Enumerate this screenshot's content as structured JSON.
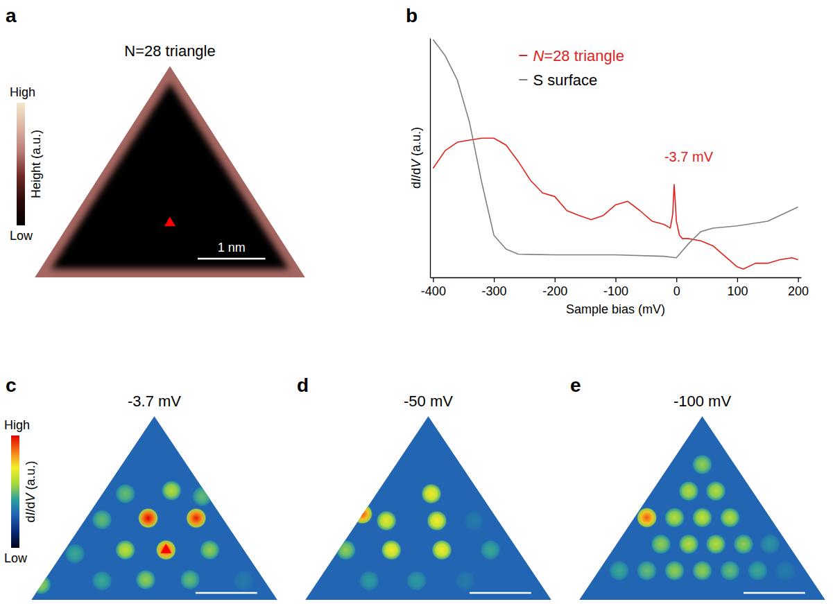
{
  "chart_data": [
    {
      "type": "image",
      "panel": "a",
      "title": "N=28 triangle",
      "width_nm": 4,
      "colorbar": {
        "label": "Height (a.u.)",
        "range": [
          0,
          1
        ],
        "ticks": [
          {
            "value": 1,
            "label": "High"
          },
          {
            "value": 0,
            "label": "Low"
          }
        ]
      },
      "rim_height": 0.55,
      "interior_height": 0.02,
      "tip": {
        "x": 2.0,
        "y": 0.89,
        "color": "#ff0000"
      },
      "scale_bar": {
        "length": 1,
        "label": "1 nm"
      }
    },
    {
      "type": "line",
      "panel": "b",
      "xlabel": "Sample bias (mV)",
      "ylabel": "dI/dV (a.u.)",
      "xlim": [
        -405,
        205
      ],
      "ylim": [
        0,
        100
      ],
      "xticks": [
        -400,
        -300,
        -200,
        -100,
        0,
        100,
        200
      ],
      "tick_labels": "x",
      "legend": "top-right",
      "series": [
        {
          "name": "N=28 triangle",
          "color": "#e3211c",
          "x": [
            -400,
            -380,
            -360,
            -340,
            -320,
            -300,
            -280,
            -260,
            -240,
            -220,
            -200,
            -180,
            -160,
            -140,
            -120,
            -100,
            -80,
            -60,
            -40,
            -20,
            -10,
            -6,
            -3.7,
            -2,
            0,
            5,
            10,
            20,
            40,
            60,
            80,
            100,
            110,
            130,
            150,
            170,
            190,
            200
          ],
          "values": [
            45.6,
            53.0,
            56.5,
            57.4,
            58.2,
            58.2,
            55.3,
            48.5,
            40.6,
            35.3,
            33.8,
            27.9,
            25.9,
            24.1,
            25.9,
            30.3,
            31.8,
            27.9,
            23.5,
            22.1,
            20.6,
            26.5,
            38.8,
            32.4,
            23.5,
            17.6,
            16.2,
            16.2,
            15.3,
            13.2,
            8.8,
            4.4,
            3.5,
            5.9,
            5.9,
            7.4,
            8.2,
            7.4
          ]
        },
        {
          "name": "S surface",
          "color": "#808080",
          "x": [
            -400,
            -380,
            -360,
            -340,
            -320,
            -300,
            -280,
            -260,
            -200,
            -100,
            -20,
            0,
            20,
            40,
            60,
            100,
            150,
            200
          ],
          "values": [
            99.4,
            92.6,
            82.4,
            64.7,
            39.7,
            17.6,
            11.8,
            9.7,
            9.4,
            9.4,
            8.8,
            8.2,
            14.1,
            19.1,
            20.6,
            21.5,
            23.5,
            29.4
          ]
        }
      ],
      "annotations": [
        {
          "text": "-3.7 mV",
          "x": -3.7,
          "y": 38.8,
          "color": "#e3211c"
        }
      ]
    },
    {
      "type": "image",
      "panel": "c",
      "title": "-3.7 mV",
      "width_nm": 4,
      "colorbar": {
        "label": "dI/dV (a.u.)",
        "range": [
          0,
          1
        ],
        "ticks": [
          {
            "value": 1,
            "label": "High"
          },
          {
            "value": 0,
            "label": "Low"
          }
        ]
      },
      "background": 0.3,
      "spots": [
        {
          "x": 1.9,
          "y": 1.54,
          "intensity": 1.0
        },
        {
          "x": 2.68,
          "y": 1.54,
          "intensity": 0.97
        },
        {
          "x": 2.19,
          "y": 0.94,
          "intensity": 0.93
        },
        {
          "x": 2.28,
          "y": 2.06,
          "intensity": 0.6
        },
        {
          "x": 1.53,
          "y": 2.0,
          "intensity": 0.5
        },
        {
          "x": 2.78,
          "y": 1.95,
          "intensity": 0.5
        },
        {
          "x": 1.15,
          "y": 1.51,
          "intensity": 0.5
        },
        {
          "x": 1.53,
          "y": 0.94,
          "intensity": 0.62
        },
        {
          "x": 2.9,
          "y": 0.94,
          "intensity": 0.55
        },
        {
          "x": 1.86,
          "y": 0.38,
          "intensity": 0.55
        },
        {
          "x": 2.58,
          "y": 0.38,
          "intensity": 0.5
        },
        {
          "x": 0.71,
          "y": 0.87,
          "intensity": 0.45
        },
        {
          "x": 0.16,
          "y": 0.29,
          "intensity": 0.55
        },
        {
          "x": 3.45,
          "y": 0.36,
          "intensity": 0.35
        },
        {
          "x": 1.15,
          "y": 0.36,
          "intensity": 0.45
        }
      ],
      "tip": {
        "x": 2.19,
        "y": 0.94,
        "color": "#ff0000"
      },
      "scale_bar": {
        "length": 1
      }
    },
    {
      "type": "image",
      "panel": "d",
      "title": "-50 mV",
      "width_nm": 4,
      "background": 0.3,
      "spots": [
        {
          "x": 2.05,
          "y": 2.0,
          "intensity": 0.72
        },
        {
          "x": 1.32,
          "y": 1.49,
          "intensity": 0.68
        },
        {
          "x": 2.14,
          "y": 1.49,
          "intensity": 0.72
        },
        {
          "x": 1.4,
          "y": 0.94,
          "intensity": 0.72
        },
        {
          "x": 2.22,
          "y": 0.94,
          "intensity": 0.72
        },
        {
          "x": 0.66,
          "y": 0.94,
          "intensity": 0.55
        },
        {
          "x": 3.01,
          "y": 0.94,
          "intensity": 0.45
        },
        {
          "x": 0.93,
          "y": 1.62,
          "intensity": 0.9
        },
        {
          "x": 2.74,
          "y": 1.49,
          "intensity": 0.35
        },
        {
          "x": 1.04,
          "y": 0.36,
          "intensity": 0.42
        },
        {
          "x": 1.81,
          "y": 0.36,
          "intensity": 0.42
        },
        {
          "x": 2.6,
          "y": 0.36,
          "intensity": 0.35
        }
      ],
      "scale_bar": {
        "length": 1
      }
    },
    {
      "type": "image",
      "panel": "e",
      "title": "-100 mV",
      "width_nm": 4,
      "background": 0.3,
      "spots": [
        {
          "x": 2.0,
          "y": 2.55,
          "intensity": 0.55
        },
        {
          "x": 1.78,
          "y": 2.05,
          "intensity": 0.6
        },
        {
          "x": 2.22,
          "y": 2.05,
          "intensity": 0.6
        },
        {
          "x": 1.1,
          "y": 1.55,
          "intensity": 0.9
        },
        {
          "x": 1.55,
          "y": 1.55,
          "intensity": 0.6
        },
        {
          "x": 2.0,
          "y": 1.55,
          "intensity": 0.62
        },
        {
          "x": 2.45,
          "y": 1.55,
          "intensity": 0.6
        },
        {
          "x": 1.33,
          "y": 1.05,
          "intensity": 0.55
        },
        {
          "x": 1.78,
          "y": 1.05,
          "intensity": 0.6
        },
        {
          "x": 2.22,
          "y": 1.05,
          "intensity": 0.6
        },
        {
          "x": 2.67,
          "y": 1.05,
          "intensity": 0.55
        },
        {
          "x": 3.1,
          "y": 1.05,
          "intensity": 0.4
        },
        {
          "x": 0.65,
          "y": 0.55,
          "intensity": 0.45
        },
        {
          "x": 1.1,
          "y": 0.55,
          "intensity": 0.5
        },
        {
          "x": 1.55,
          "y": 0.55,
          "intensity": 0.55
        },
        {
          "x": 2.0,
          "y": 0.55,
          "intensity": 0.55
        },
        {
          "x": 2.45,
          "y": 0.55,
          "intensity": 0.5
        },
        {
          "x": 2.9,
          "y": 0.55,
          "intensity": 0.45
        },
        {
          "x": 3.35,
          "y": 0.55,
          "intensity": 0.35
        }
      ],
      "scale_bar": {
        "length": 1
      }
    }
  ]
}
